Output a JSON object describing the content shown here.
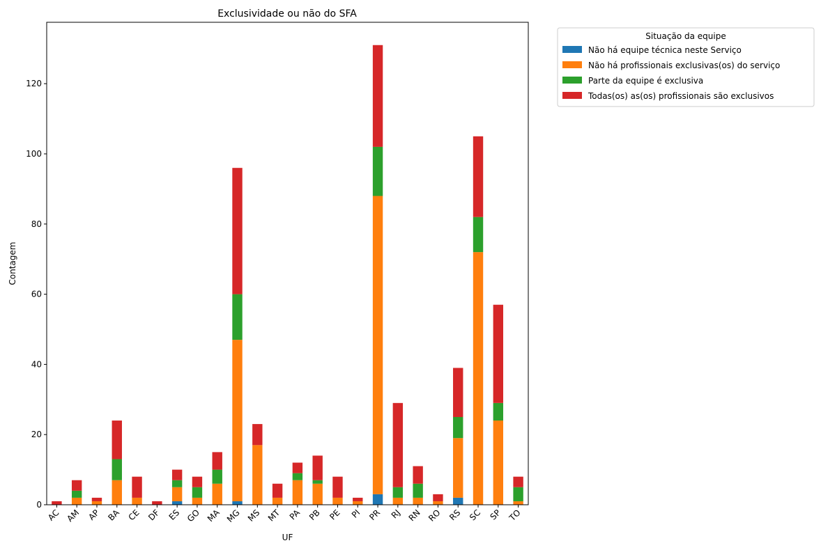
{
  "chart_data": {
    "type": "bar",
    "stacked": true,
    "title": "Exclusividade ou não do SFA",
    "xlabel": "UF",
    "ylabel": "Contagem",
    "ylim": [
      0,
      137.5
    ],
    "yticks": [
      0,
      20,
      40,
      60,
      80,
      100,
      120
    ],
    "categories": [
      "AC",
      "AM",
      "AP",
      "BA",
      "CE",
      "DF",
      "ES",
      "GO",
      "MA",
      "MG",
      "MS",
      "MT",
      "PA",
      "PB",
      "PE",
      "PI",
      "PR",
      "RJ",
      "RN",
      "RO",
      "RS",
      "SC",
      "SP",
      "TO"
    ],
    "legend_title": "Situação da equipe",
    "legend_position": "outside top-right",
    "series": [
      {
        "name": "Não há equipe técnica neste Serviço",
        "color": "#1f77b4",
        "values": [
          0,
          0,
          0,
          0,
          0,
          0,
          1,
          0,
          0,
          1,
          0,
          0,
          0,
          0,
          0,
          0,
          3,
          0,
          0,
          0,
          2,
          0,
          0,
          0
        ]
      },
      {
        "name": "Não há profissionais exclusivas(os) do serviço",
        "color": "#ff7f0e",
        "values": [
          0,
          2,
          1,
          7,
          2,
          0,
          4,
          2,
          6,
          46,
          17,
          2,
          7,
          6,
          2,
          1,
          85,
          2,
          2,
          1,
          17,
          72,
          24,
          1
        ]
      },
      {
        "name": "Parte da equipe é exclusiva",
        "color": "#2ca02c",
        "values": [
          0,
          2,
          0,
          6,
          0,
          0,
          2,
          3,
          4,
          13,
          0,
          0,
          2,
          1,
          0,
          0,
          14,
          3,
          4,
          0,
          6,
          10,
          5,
          4
        ]
      },
      {
        "name": "Todas(os) as(os) profissionais são exclusivos",
        "color": "#d62728",
        "values": [
          1,
          3,
          1,
          11,
          6,
          1,
          3,
          3,
          5,
          36,
          6,
          4,
          3,
          7,
          6,
          1,
          29,
          24,
          5,
          2,
          14,
          23,
          28,
          3
        ]
      }
    ]
  }
}
